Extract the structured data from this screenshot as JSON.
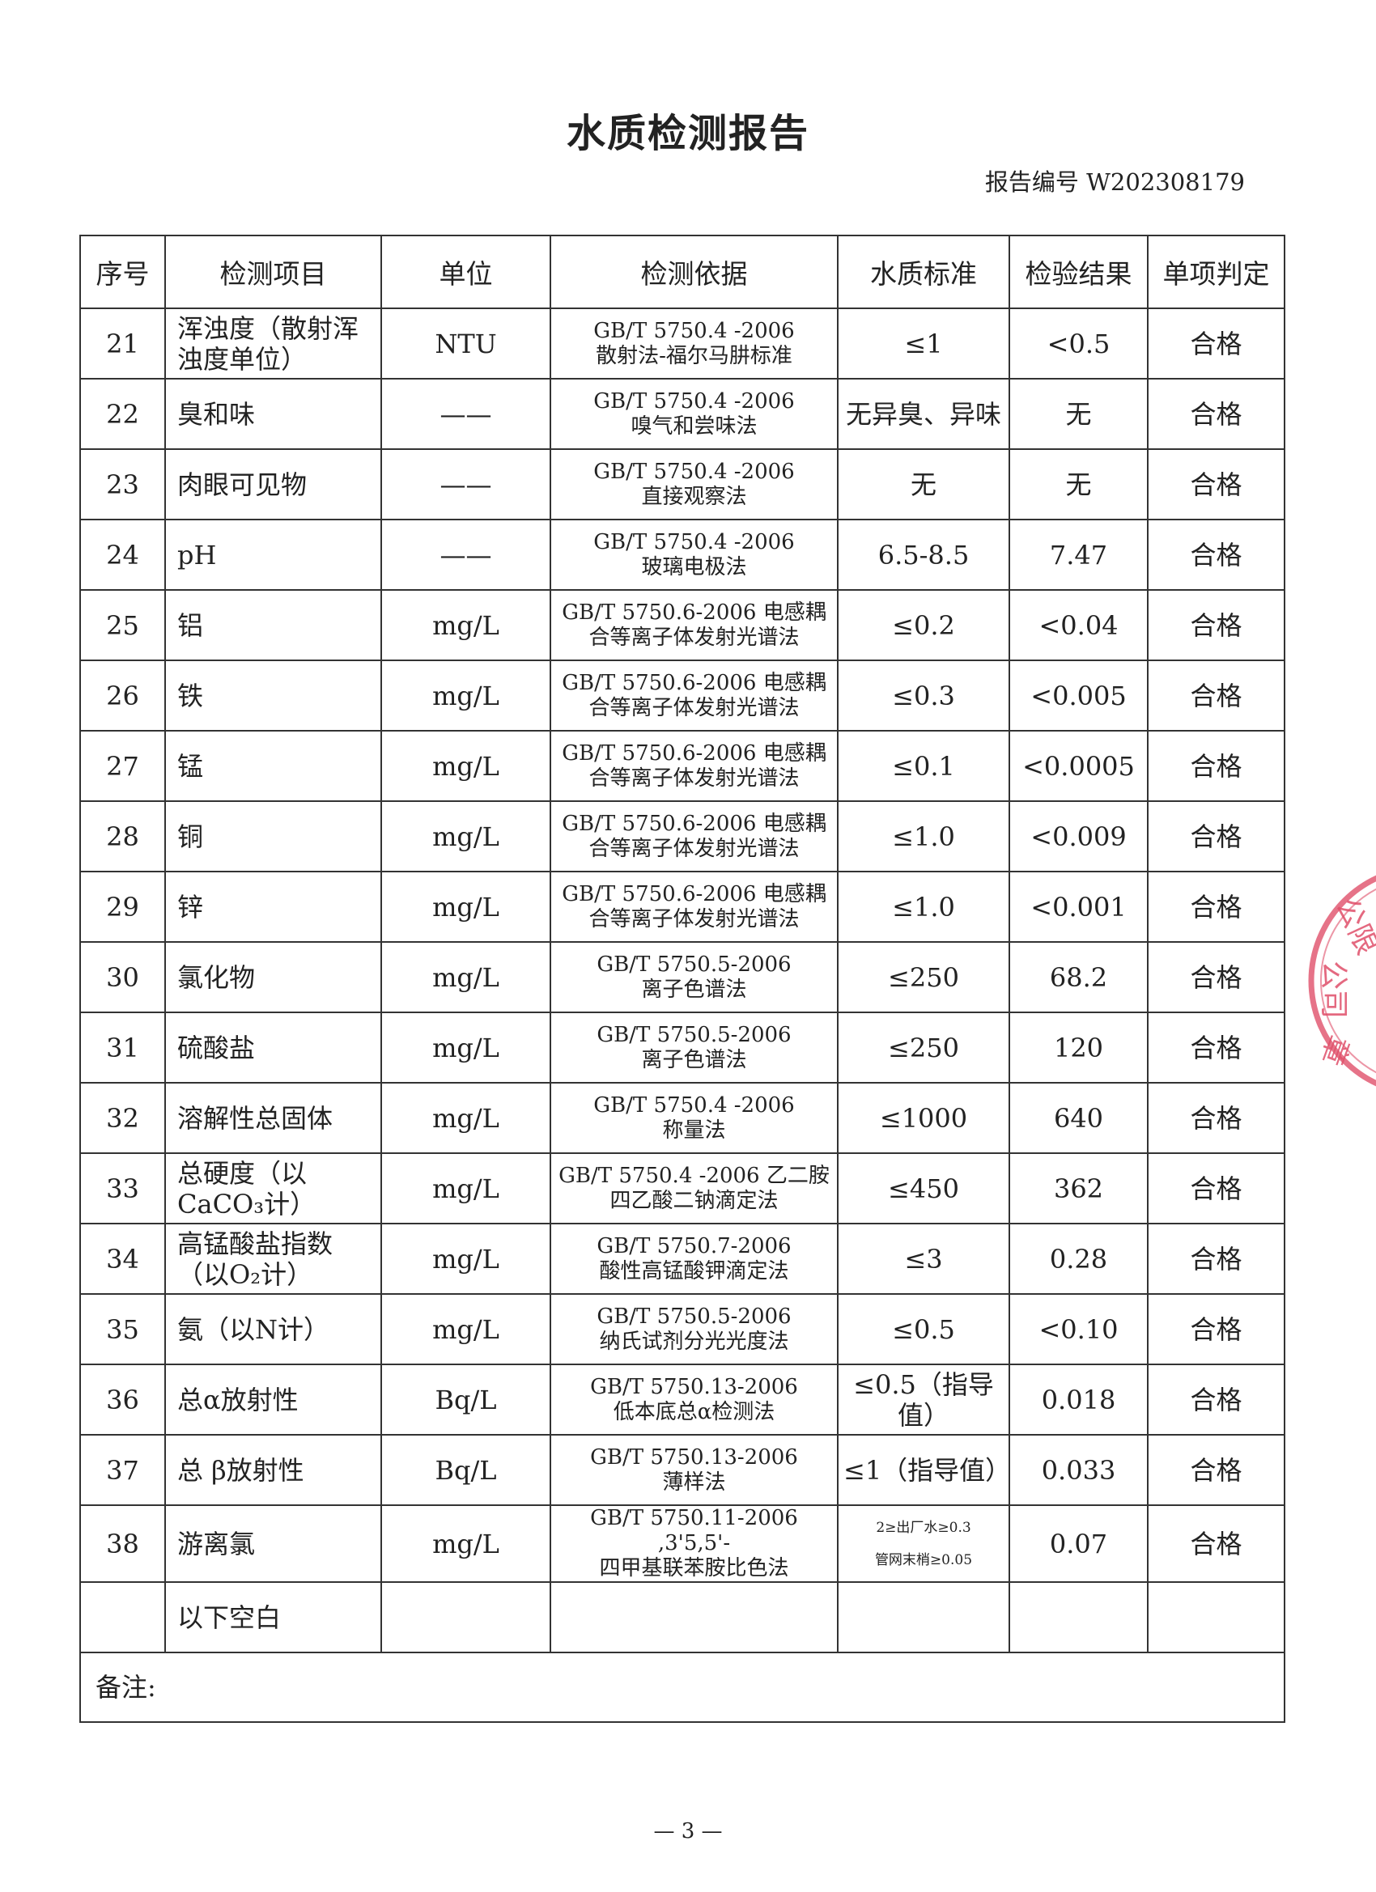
{
  "title": "水质检测报告",
  "report_no": "报告编号 W202308179",
  "columns": [
    "序号",
    "检测项目",
    "单位",
    "检测依据",
    "水质标准",
    "检验结果",
    "单项判定"
  ],
  "rows": [
    {
      "no": "21",
      "item": "浑浊度（散射浑浊度单位）",
      "unit": "NTU",
      "method": [
        "GB/T 5750.4 -2006",
        "散射法-福尔马肼标准"
      ],
      "standard": "≤1",
      "result": "<0.5",
      "judgement": "合格"
    },
    {
      "no": "22",
      "item": "臭和味",
      "unit": "——",
      "method": [
        "GB/T 5750.4 -2006",
        "嗅气和尝味法"
      ],
      "standard": "无异臭、异味",
      "result": "无",
      "judgement": "合格"
    },
    {
      "no": "23",
      "item": "肉眼可见物",
      "unit": "——",
      "method": [
        "GB/T 5750.4 -2006",
        "直接观察法"
      ],
      "standard": "无",
      "result": "无",
      "judgement": "合格"
    },
    {
      "no": "24",
      "item": "pH",
      "unit": "——",
      "method": [
        "GB/T 5750.4 -2006",
        "玻璃电极法"
      ],
      "standard": "6.5-8.5",
      "result": "7.47",
      "judgement": "合格"
    },
    {
      "no": "25",
      "item": "铝",
      "unit": "mg/L",
      "method": [
        "GB/T 5750.6-2006 电感耦",
        "合等离子体发射光谱法"
      ],
      "standard": "≤0.2",
      "result": "<0.04",
      "judgement": "合格"
    },
    {
      "no": "26",
      "item": "铁",
      "unit": "mg/L",
      "method": [
        "GB/T 5750.6-2006 电感耦",
        "合等离子体发射光谱法"
      ],
      "standard": "≤0.3",
      "result": "<0.005",
      "judgement": "合格"
    },
    {
      "no": "27",
      "item": "锰",
      "unit": "mg/L",
      "method": [
        "GB/T 5750.6-2006 电感耦",
        "合等离子体发射光谱法"
      ],
      "standard": "≤0.1",
      "result": "<0.0005",
      "judgement": "合格"
    },
    {
      "no": "28",
      "item": "铜",
      "unit": "mg/L",
      "method": [
        "GB/T 5750.6-2006 电感耦",
        "合等离子体发射光谱法"
      ],
      "standard": "≤1.0",
      "result": "<0.009",
      "judgement": "合格"
    },
    {
      "no": "29",
      "item": "锌",
      "unit": "mg/L",
      "method": [
        "GB/T 5750.6-2006 电感耦",
        "合等离子体发射光谱法"
      ],
      "standard": "≤1.0",
      "result": "<0.001",
      "judgement": "合格"
    },
    {
      "no": "30",
      "item": "氯化物",
      "unit": "mg/L",
      "method": [
        "GB/T 5750.5-2006",
        "离子色谱法"
      ],
      "standard": "≤250",
      "result": "68.2",
      "judgement": "合格"
    },
    {
      "no": "31",
      "item": "硫酸盐",
      "unit": "mg/L",
      "method": [
        "GB/T 5750.5-2006",
        "离子色谱法"
      ],
      "standard": "≤250",
      "result": "120",
      "judgement": "合格"
    },
    {
      "no": "32",
      "item": "溶解性总固体",
      "unit": "mg/L",
      "method": [
        "GB/T 5750.4 -2006",
        "称量法"
      ],
      "standard": "≤1000",
      "result": "640",
      "judgement": "合格"
    },
    {
      "no": "33",
      "item": "总硬度（以CaCO₃计）",
      "unit": "mg/L",
      "method": [
        "GB/T 5750.4 -2006 乙二胺",
        "四乙酸二钠滴定法"
      ],
      "standard": "≤450",
      "result": "362",
      "judgement": "合格"
    },
    {
      "no": "34",
      "item": "高锰酸盐指数（以O₂计）",
      "unit": "mg/L",
      "method": [
        "GB/T 5750.7-2006",
        "酸性高锰酸钾滴定法"
      ],
      "standard": "≤3",
      "result": "0.28",
      "judgement": "合格"
    },
    {
      "no": "35",
      "item": "氨（以N计）",
      "unit": "mg/L",
      "method": [
        "GB/T 5750.5-2006",
        "纳氏试剂分光光度法"
      ],
      "standard": "≤0.5",
      "result": "<0.10",
      "judgement": "合格"
    },
    {
      "no": "36",
      "item": "总α放射性",
      "unit": "Bq/L",
      "method": [
        "GB/T 5750.13-2006",
        "低本底总α检测法"
      ],
      "standard": "≤0.5（指导值）",
      "result": "0.018",
      "judgement": "合格"
    },
    {
      "no": "37",
      "item": "总 β放射性",
      "unit": "Bq/L",
      "method": [
        "GB/T 5750.13-2006",
        "薄样法"
      ],
      "standard": "≤1（指导值）",
      "result": "0.033",
      "judgement": "合格"
    },
    {
      "no": "38",
      "item": "游离氯",
      "unit": "mg/L",
      "method": [
        "GB/T 5750.11-2006 ,3'5,5'-",
        "四甲基联苯胺比色法"
      ],
      "standard_lines": [
        "2≥出厂水≥0.3",
        "管网末梢≥0.05"
      ],
      "result": "0.07",
      "judgement": "合格"
    }
  ],
  "blank_row_label": "以下空白",
  "remark_label": "备注:",
  "page_number": "— 3 —",
  "stamp": {
    "text": "公限公司章",
    "color": "#e0506a"
  }
}
